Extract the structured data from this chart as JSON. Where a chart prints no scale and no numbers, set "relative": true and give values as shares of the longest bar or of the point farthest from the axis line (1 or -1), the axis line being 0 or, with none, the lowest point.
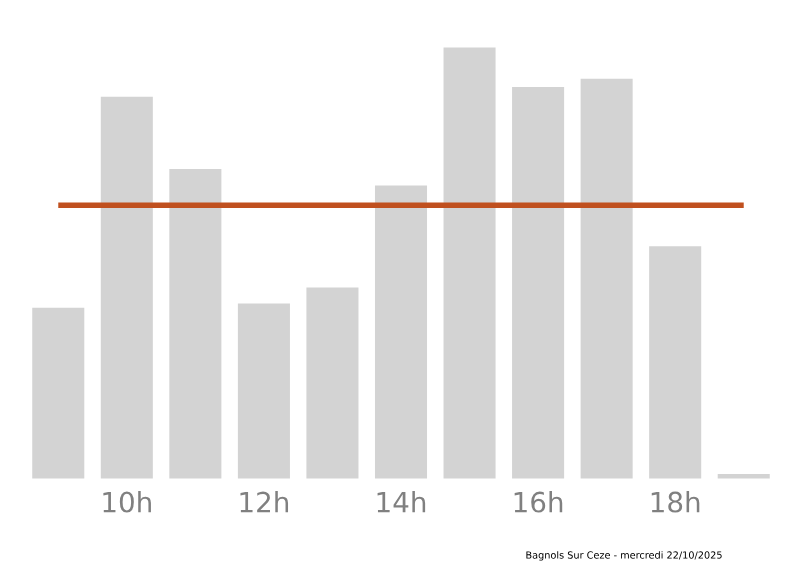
{
  "chart_data": {
    "type": "bar",
    "relative": true,
    "categories": [
      null,
      "10h",
      null,
      "12h",
      null,
      "14h",
      null,
      "16h",
      null,
      "18h",
      null
    ],
    "values": [
      0.4,
      0.886,
      0.72,
      0.41,
      0.447,
      0.682,
      1,
      0.909,
      0.928,
      0.542,
      0.017
    ],
    "color": "#d3d3d3",
    "ref_lines": [
      {
        "axis": "y",
        "value": 0.633,
        "color": "#c0501f",
        "line_style": "solid"
      }
    ],
    "grid": false,
    "legend": false,
    "annotations": [
      "Bagnols Sur Ceze - mercredi 22/10/2025"
    ]
  }
}
